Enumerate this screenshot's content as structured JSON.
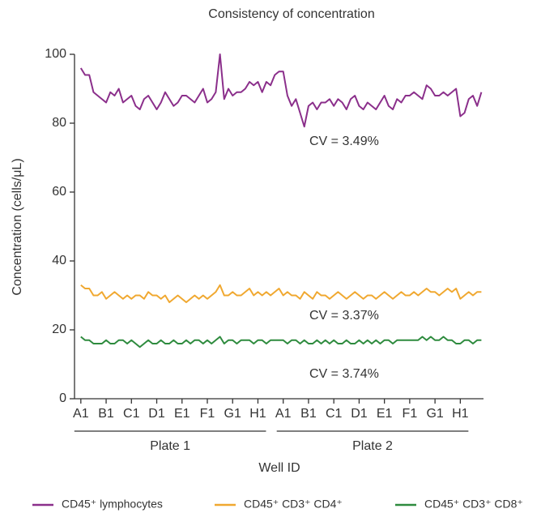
{
  "chart_data": {
    "type": "line",
    "title": "Consistency of concentration",
    "x_label": "Well ID",
    "y_label": "Concentration (cells/μL)",
    "x": [
      0,
      2,
      4,
      6,
      8,
      10,
      12,
      14,
      16,
      18,
      20,
      22,
      24,
      26,
      28,
      30,
      32,
      34,
      36,
      38,
      40,
      42,
      44,
      46,
      48,
      50,
      52,
      54,
      56,
      58,
      60,
      62,
      64,
      66,
      68,
      70,
      72,
      74,
      76,
      78,
      80,
      82,
      84,
      86,
      88,
      90,
      92,
      94,
      96,
      98,
      100,
      102,
      104,
      106,
      108,
      110,
      112,
      114,
      116,
      118,
      120,
      122,
      124,
      126,
      128,
      130,
      132,
      134,
      136,
      138,
      140,
      142,
      144,
      146,
      148,
      150,
      152,
      154,
      156,
      158,
      160,
      162,
      164,
      166,
      168,
      170,
      172,
      174,
      176,
      178,
      180,
      182,
      184,
      186,
      188,
      190
    ],
    "series": [
      {
        "name": "CD45⁺ lymphocytes",
        "color": "#8b2f8b",
        "values": [
          96,
          94,
          94,
          89,
          88,
          87,
          86,
          89,
          88,
          90,
          86,
          87,
          88,
          85,
          84,
          87,
          88,
          86,
          84,
          86,
          89,
          87,
          85,
          86,
          88,
          88,
          87,
          86,
          88,
          90,
          86,
          87,
          89,
          100,
          87,
          90,
          88,
          89,
          89,
          90,
          92,
          91,
          92,
          89,
          92,
          91,
          94,
          95,
          95,
          88,
          85,
          87,
          83,
          79,
          85,
          86,
          84,
          86,
          86,
          87,
          85,
          87,
          86,
          84,
          87,
          88,
          85,
          84,
          86,
          85,
          84,
          86,
          88,
          85,
          84,
          87,
          86,
          88,
          88,
          89,
          88,
          87,
          91,
          90,
          88,
          88,
          89,
          88,
          89,
          90,
          82,
          83,
          87,
          88,
          85,
          89
        ]
      },
      {
        "name": "CD45⁺ CD3⁺ CD4⁺",
        "color": "#f0a830",
        "values": [
          33,
          32,
          32,
          30,
          30,
          31,
          29,
          30,
          31,
          30,
          29,
          30,
          29,
          30,
          30,
          29,
          31,
          30,
          30,
          29,
          30,
          28,
          29,
          30,
          29,
          28,
          29,
          30,
          29,
          30,
          29,
          30,
          31,
          33,
          30,
          30,
          31,
          30,
          30,
          31,
          32,
          30,
          31,
          30,
          31,
          30,
          31,
          32,
          30,
          31,
          30,
          30,
          29,
          31,
          30,
          29,
          31,
          30,
          30,
          29,
          30,
          31,
          30,
          29,
          30,
          31,
          30,
          29,
          30,
          30,
          29,
          30,
          31,
          30,
          29,
          30,
          31,
          30,
          30,
          31,
          30,
          31,
          32,
          31,
          31,
          30,
          31,
          32,
          31,
          32,
          29,
          30,
          31,
          30,
          31,
          31
        ]
      },
      {
        "name": "CD45⁺ CD3⁺ CD8⁺",
        "color": "#2e8b3e",
        "values": [
          18,
          17,
          17,
          16,
          16,
          16,
          17,
          16,
          16,
          17,
          17,
          16,
          17,
          16,
          15,
          16,
          17,
          16,
          16,
          17,
          16,
          16,
          17,
          16,
          16,
          17,
          16,
          17,
          17,
          16,
          17,
          16,
          17,
          18,
          16,
          17,
          17,
          16,
          17,
          17,
          17,
          16,
          17,
          17,
          16,
          17,
          17,
          17,
          17,
          16,
          17,
          17,
          16,
          17,
          16,
          16,
          17,
          16,
          17,
          16,
          17,
          16,
          16,
          17,
          16,
          16,
          17,
          16,
          17,
          16,
          17,
          16,
          17,
          17,
          16,
          17,
          17,
          17,
          17,
          17,
          17,
          18,
          17,
          18,
          17,
          17,
          18,
          17,
          17,
          16,
          16,
          17,
          17,
          16,
          17,
          17
        ]
      }
    ],
    "annotations": [
      "CV = 3.49%",
      "CV = 3.37%",
      "CV = 3.74%"
    ],
    "groups": [
      "Plate 1",
      "Plate 2"
    ],
    "xlim": [
      -3,
      191
    ],
    "xticks": [
      {
        "value": 0,
        "label": "A1"
      },
      {
        "value": 12,
        "label": "B1"
      },
      {
        "value": 24,
        "label": "C1"
      },
      {
        "value": 36,
        "label": "D1"
      },
      {
        "value": 48,
        "label": "E1"
      },
      {
        "value": 60,
        "label": "F1"
      },
      {
        "value": 72,
        "label": "G1"
      },
      {
        "value": 84,
        "label": "H1"
      },
      {
        "value": 96,
        "label": "A1"
      },
      {
        "value": 108,
        "label": "B1"
      },
      {
        "value": 120,
        "label": "C1"
      },
      {
        "value": 132,
        "label": "D1"
      },
      {
        "value": 144,
        "label": "E1"
      },
      {
        "value": 156,
        "label": "F1"
      },
      {
        "value": 168,
        "label": "G1"
      },
      {
        "value": 180,
        "label": "H1"
      }
    ],
    "ylim": [
      0,
      100
    ],
    "yticks": [
      0,
      20,
      40,
      60,
      80,
      100
    ],
    "grid": false
  }
}
